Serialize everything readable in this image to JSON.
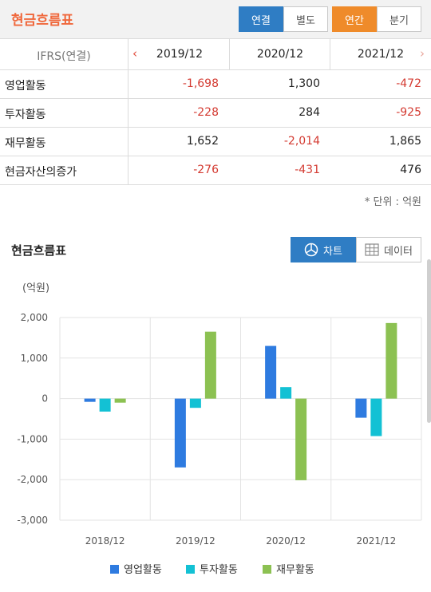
{
  "header": {
    "title": "현금흐름표",
    "consolidation": [
      "연결",
      "별도"
    ],
    "period": [
      "연간",
      "분기"
    ]
  },
  "table": {
    "standard_label": "IFRS(연결)",
    "columns": [
      "2019/12",
      "2020/12",
      "2021/12"
    ],
    "rows": [
      {
        "label": "영업활동",
        "values": [
          "-1,698",
          "1,300",
          "-472"
        ]
      },
      {
        "label": "투자활동",
        "values": [
          "-228",
          "284",
          "-925"
        ]
      },
      {
        "label": "재무활동",
        "values": [
          "1,652",
          "-2,014",
          "1,865"
        ]
      },
      {
        "label": "현금자산의증가",
        "values": [
          "-276",
          "-431",
          "476"
        ]
      }
    ],
    "unit_note": "* 단위 : 억원"
  },
  "chart_section": {
    "title": "현금흐름표",
    "chart_button": "차트",
    "data_button": "데이터",
    "y_unit": "(억원)"
  },
  "colors": {
    "accent_orange": "#f0683c",
    "toggle_blue": "#2f7dc4",
    "negative": "#d43b32",
    "series": [
      "#2e7be0",
      "#13c1d4",
      "#8cc152"
    ]
  },
  "icons": {
    "prev": "chevron-left-icon",
    "next": "chevron-right-icon",
    "chart": "pie-chart-icon",
    "data": "grid-table-icon"
  },
  "chart_data": {
    "type": "bar",
    "categories": [
      "2018/12",
      "2019/12",
      "2020/12",
      "2021/12"
    ],
    "series": [
      {
        "name": "영업활동",
        "values": [
          -80,
          -1698,
          1300,
          -472
        ]
      },
      {
        "name": "투자활동",
        "values": [
          -320,
          -228,
          284,
          -925
        ]
      },
      {
        "name": "재무활동",
        "values": [
          -100,
          1652,
          -2014,
          1865
        ]
      }
    ],
    "ylabel": "(억원)",
    "ylim": [
      -3000,
      2000
    ],
    "yticks": [
      2000,
      1000,
      0,
      -1000,
      -2000,
      -3000
    ],
    "ytick_labels": [
      "2,000",
      "1,000",
      "0",
      "-1,000",
      "-2,000",
      "-3,000"
    ],
    "grid": true,
    "legend": "bottom"
  }
}
